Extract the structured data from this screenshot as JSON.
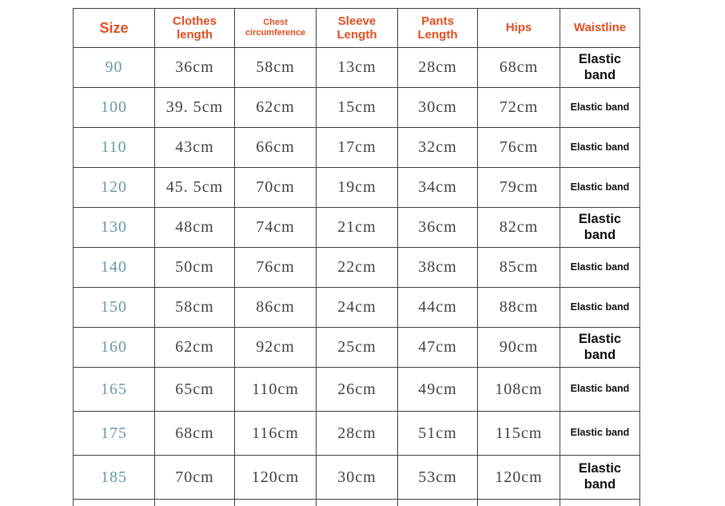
{
  "colors": {
    "header_text": "#e04f22",
    "size_text": "#6699aa",
    "value_text": "#414141",
    "waistline_text": "#0f0f0f",
    "border": "#3f3f3f",
    "background": "#ffffff"
  },
  "table": {
    "columns": [
      {
        "label": "Size"
      },
      {
        "label": "Clothes length"
      },
      {
        "label": "Chest circumference"
      },
      {
        "label": "Sleeve Length"
      },
      {
        "label": "Pants Length"
      },
      {
        "label": "Hips"
      },
      {
        "label": "Waistline"
      }
    ],
    "rows": [
      {
        "size": "90",
        "clothes_length": "36cm",
        "chest_circumference": "58cm",
        "sleeve_length": "13cm",
        "pants_length": "28cm",
        "hips": "68cm",
        "waistline": "Elastic band",
        "waistline_large": true
      },
      {
        "size": "100",
        "clothes_length": "39. 5cm",
        "chest_circumference": "62cm",
        "sleeve_length": "15cm",
        "pants_length": "30cm",
        "hips": "72cm",
        "waistline": "Elastic band",
        "waistline_large": false
      },
      {
        "size": "110",
        "clothes_length": "43cm",
        "chest_circumference": "66cm",
        "sleeve_length": "17cm",
        "pants_length": "32cm",
        "hips": "76cm",
        "waistline": "Elastic band",
        "waistline_large": false
      },
      {
        "size": "120",
        "clothes_length": "45. 5cm",
        "chest_circumference": "70cm",
        "sleeve_length": "19cm",
        "pants_length": "34cm",
        "hips": "79cm",
        "waistline": "Elastic band",
        "waistline_large": false
      },
      {
        "size": "130",
        "clothes_length": "48cm",
        "chest_circumference": "74cm",
        "sleeve_length": "21cm",
        "pants_length": "36cm",
        "hips": "82cm",
        "waistline": "Elastic band",
        "waistline_large": true
      },
      {
        "size": "140",
        "clothes_length": "50cm",
        "chest_circumference": "76cm",
        "sleeve_length": "22cm",
        "pants_length": "38cm",
        "hips": "85cm",
        "waistline": "Elastic band",
        "waistline_large": false
      },
      {
        "size": "150",
        "clothes_length": "58cm",
        "chest_circumference": "86cm",
        "sleeve_length": "24cm",
        "pants_length": "44cm",
        "hips": "88cm",
        "waistline": "Elastic band",
        "waistline_large": false
      },
      {
        "size": "160",
        "clothes_length": "62cm",
        "chest_circumference": "92cm",
        "sleeve_length": "25cm",
        "pants_length": "47cm",
        "hips": "90cm",
        "waistline": "Elastic band",
        "waistline_large": true
      },
      {
        "size": "165",
        "clothes_length": "65cm",
        "chest_circumference": "110cm",
        "sleeve_length": "26cm",
        "pants_length": "49cm",
        "hips": "108cm",
        "waistline": "Elastic band",
        "waistline_large": false
      },
      {
        "size": "175",
        "clothes_length": "68cm",
        "chest_circumference": "116cm",
        "sleeve_length": "28cm",
        "pants_length": "51cm",
        "hips": "115cm",
        "waistline": "Elastic band",
        "waistline_large": false
      },
      {
        "size": "185",
        "clothes_length": "70cm",
        "chest_circumference": "120cm",
        "sleeve_length": "30cm",
        "pants_length": "53cm",
        "hips": "120cm",
        "waistline": "Elastic band",
        "waistline_large": true
      }
    ]
  },
  "chart_data": {
    "type": "table",
    "title": "Garment size chart",
    "columns": [
      "Size",
      "Clothes length",
      "Chest circumference",
      "Sleeve Length",
      "Pants Length",
      "Hips",
      "Waistline"
    ],
    "rows": [
      [
        "90",
        "36cm",
        "58cm",
        "13cm",
        "28cm",
        "68cm",
        "Elastic band"
      ],
      [
        "100",
        "39. 5cm",
        "62cm",
        "15cm",
        "30cm",
        "72cm",
        "Elastic band"
      ],
      [
        "110",
        "43cm",
        "66cm",
        "17cm",
        "32cm",
        "76cm",
        "Elastic band"
      ],
      [
        "120",
        "45. 5cm",
        "70cm",
        "19cm",
        "34cm",
        "79cm",
        "Elastic band"
      ],
      [
        "130",
        "48cm",
        "74cm",
        "21cm",
        "36cm",
        "82cm",
        "Elastic band"
      ],
      [
        "140",
        "50cm",
        "76cm",
        "22cm",
        "38cm",
        "85cm",
        "Elastic band"
      ],
      [
        "150",
        "58cm",
        "86cm",
        "24cm",
        "44cm",
        "88cm",
        "Elastic band"
      ],
      [
        "160",
        "62cm",
        "92cm",
        "25cm",
        "47cm",
        "90cm",
        "Elastic band"
      ],
      [
        "165",
        "65cm",
        "110cm",
        "26cm",
        "49cm",
        "108cm",
        "Elastic band"
      ],
      [
        "175",
        "68cm",
        "116cm",
        "28cm",
        "51cm",
        "115cm",
        "Elastic band"
      ],
      [
        "185",
        "70cm",
        "120cm",
        "30cm",
        "53cm",
        "120cm",
        "Elastic band"
      ]
    ]
  }
}
